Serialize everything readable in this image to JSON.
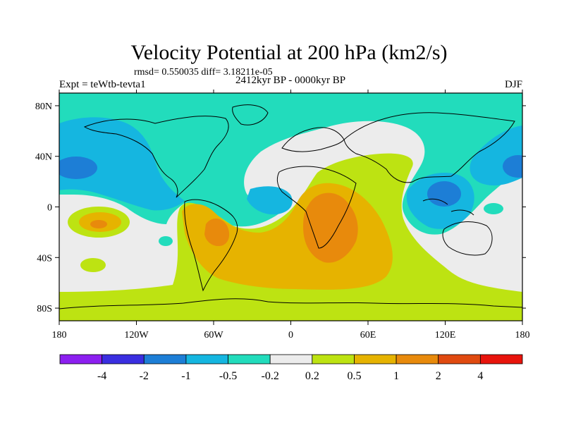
{
  "chart_data": {
    "type": "contour-map",
    "title": "Velocity Potential at 200 hPa (km2/s)",
    "stats_line": "rmsd= 0.550035 diff= 3.18211e-05",
    "left_label": "Expt = teWtb-tevta1",
    "center_label": "2412kyr BP - 0000kyr BP",
    "right_label": "DJF",
    "lon_range": [
      -180,
      180
    ],
    "lat_range": [
      -90,
      90
    ],
    "x_ticks": [
      {
        "value": -180,
        "label": "180"
      },
      {
        "value": -120,
        "label": "120W"
      },
      {
        "value": -60,
        "label": "60W"
      },
      {
        "value": 0,
        "label": "0"
      },
      {
        "value": 60,
        "label": "60E"
      },
      {
        "value": 120,
        "label": "120E"
      },
      {
        "value": 180,
        "label": "180"
      }
    ],
    "y_ticks": [
      {
        "value": 80,
        "label": "80N"
      },
      {
        "value": 40,
        "label": "40N"
      },
      {
        "value": 0,
        "label": "0"
      },
      {
        "value": -40,
        "label": "40S"
      },
      {
        "value": -80,
        "label": "80S"
      }
    ],
    "colorbar": {
      "colors": [
        "#8c1ff0",
        "#3a2ee0",
        "#1d7ed6",
        "#15b6e0",
        "#22dcbc",
        "#ececec",
        "#bde312",
        "#e6b300",
        "#e88a0c",
        "#e04a10",
        "#e8140c"
      ],
      "levels": [
        -4,
        -2,
        -1,
        -0.5,
        -0.2,
        0.2,
        0.5,
        1,
        2,
        4
      ],
      "labels": [
        "-4",
        "-2",
        "-1",
        "-0.5",
        "-0.2",
        "0.2",
        "0.5",
        "1",
        "2",
        "4"
      ]
    },
    "regions": [
      {
        "name": "north-polar-cyan-band",
        "level": "-0.5 to -0.2",
        "color_index": 4
      },
      {
        "name": "pacific-north-blue",
        "level": "-1 to -0.5",
        "color_index": 3
      },
      {
        "name": "pacific-north-core",
        "level": "-2 to -1",
        "color_index": 2
      },
      {
        "name": "atlantic-blue",
        "level": "-1 to -0.5",
        "color_index": 3
      },
      {
        "name": "maritime-continent-blue",
        "level": "-1 to -0.5",
        "color_index": 3
      },
      {
        "name": "maritime-continent-core",
        "level": "-2 to -1",
        "color_index": 2
      },
      {
        "name": "southern-green",
        "level": "0.2 to 0.5",
        "color_index": 6
      },
      {
        "name": "south-america-africa-orange",
        "level": "0.5 to 1",
        "color_index": 7
      },
      {
        "name": "africa-core",
        "level": "1 to 2",
        "color_index": 8
      },
      {
        "name": "south-america-core",
        "level": "1 to 2",
        "color_index": 8
      }
    ]
  }
}
